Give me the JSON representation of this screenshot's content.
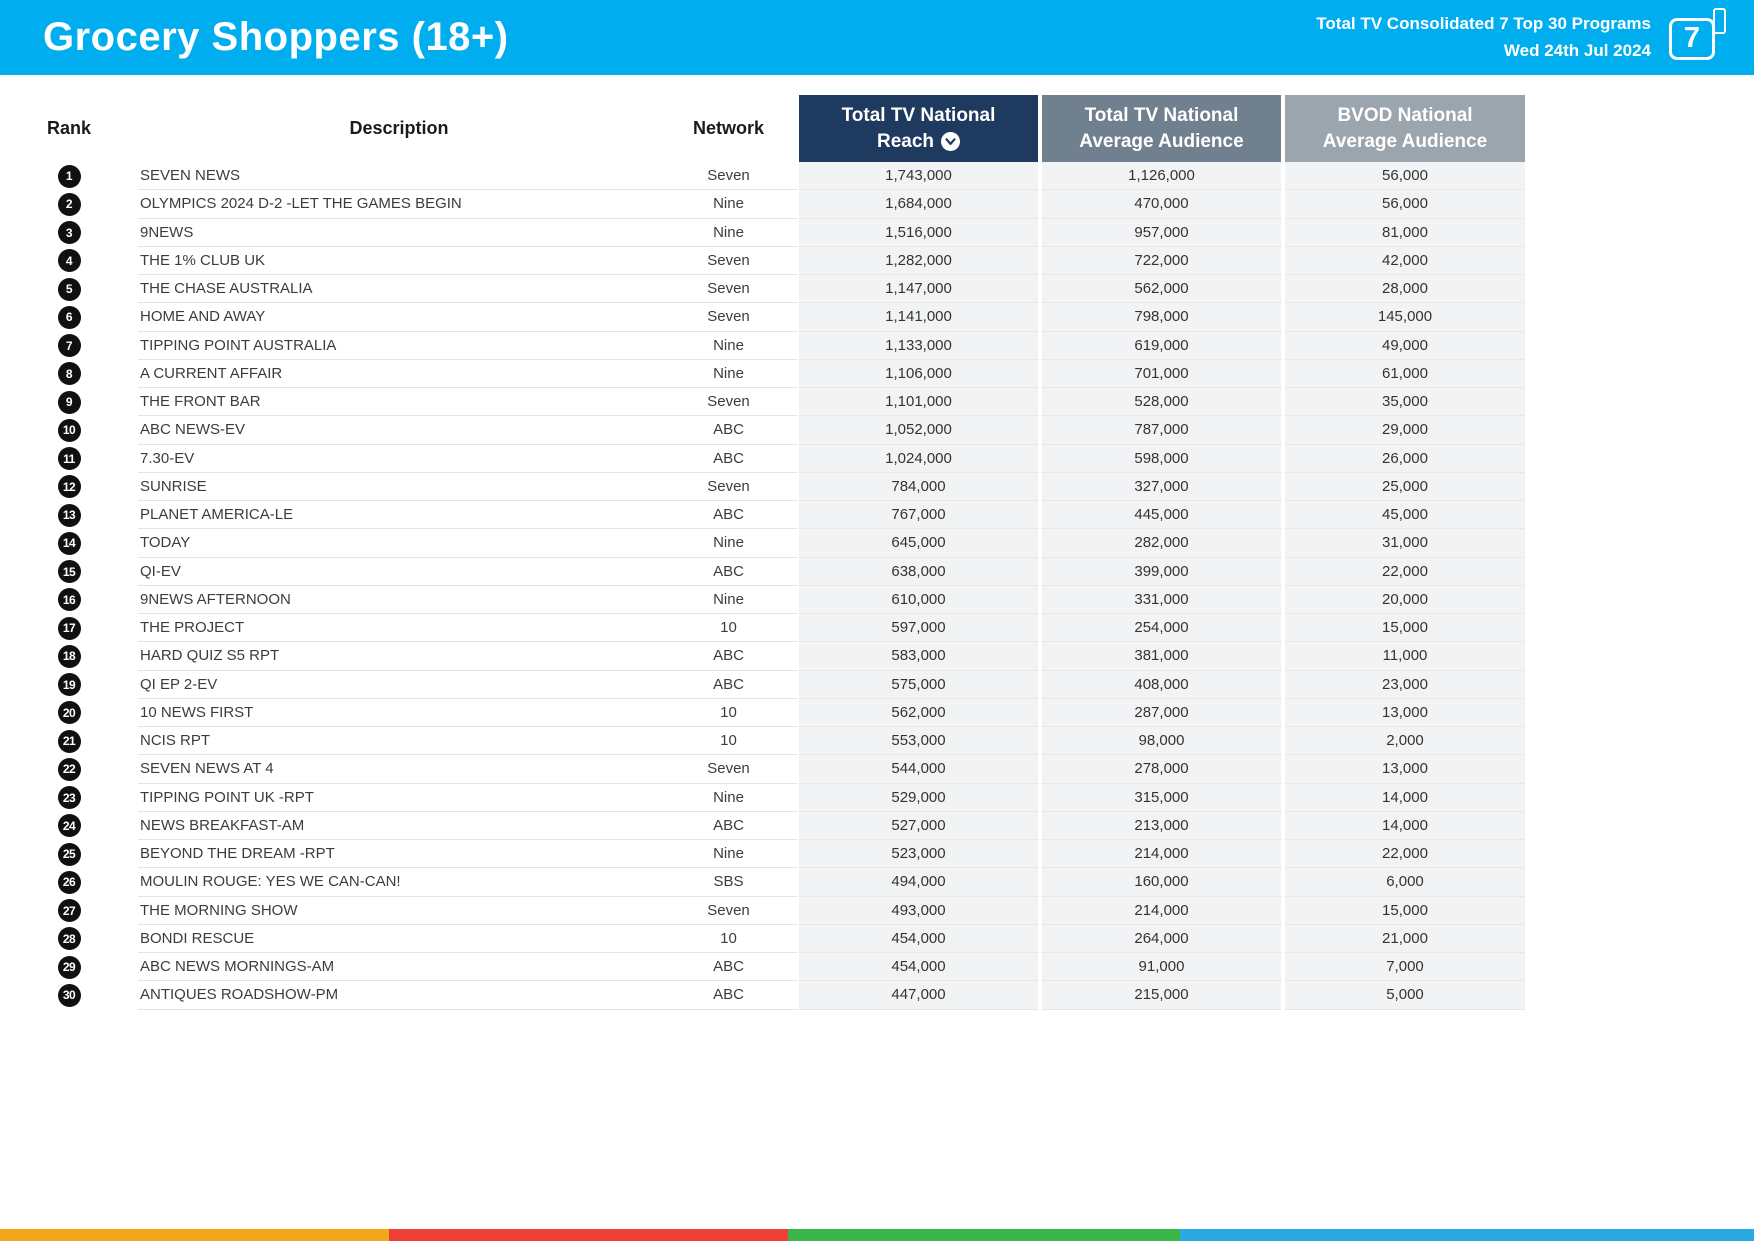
{
  "header": {
    "title": "Grocery Shoppers (18+)",
    "report_label": "Total TV Consolidated 7 Top 30 Programs",
    "report_date": "Wed 24th Jul 2024",
    "logo_text": "7",
    "bg_color": "#00ADEF"
  },
  "table": {
    "columns": {
      "rank": "Rank",
      "description": "Description",
      "network": "Network",
      "reach": "Total TV National Reach",
      "avg": "Total TV National Average Audience",
      "bvod": "BVOD National Average Audience"
    },
    "header_colors": {
      "reach": "#1f3a5f",
      "avg": "#71808f",
      "bvod": "#9ba5ad"
    },
    "sort_column": "reach",
    "sort_direction": "descending",
    "rows": [
      {
        "rank": "1",
        "description": "SEVEN NEWS",
        "network": "Seven",
        "reach": "1,743,000",
        "avg": "1,126,000",
        "bvod": "56,000"
      },
      {
        "rank": "2",
        "description": "OLYMPICS 2024 D-2 -LET THE GAMES BEGIN",
        "network": "Nine",
        "reach": "1,684,000",
        "avg": "470,000",
        "bvod": "56,000"
      },
      {
        "rank": "3",
        "description": "9NEWS",
        "network": "Nine",
        "reach": "1,516,000",
        "avg": "957,000",
        "bvod": "81,000"
      },
      {
        "rank": "4",
        "description": "THE 1% CLUB UK",
        "network": "Seven",
        "reach": "1,282,000",
        "avg": "722,000",
        "bvod": "42,000"
      },
      {
        "rank": "5",
        "description": "THE CHASE AUSTRALIA",
        "network": "Seven",
        "reach": "1,147,000",
        "avg": "562,000",
        "bvod": "28,000"
      },
      {
        "rank": "6",
        "description": "HOME AND AWAY",
        "network": "Seven",
        "reach": "1,141,000",
        "avg": "798,000",
        "bvod": "145,000"
      },
      {
        "rank": "7",
        "description": "TIPPING POINT AUSTRALIA",
        "network": "Nine",
        "reach": "1,133,000",
        "avg": "619,000",
        "bvod": "49,000"
      },
      {
        "rank": "8",
        "description": "A CURRENT AFFAIR",
        "network": "Nine",
        "reach": "1,106,000",
        "avg": "701,000",
        "bvod": "61,000"
      },
      {
        "rank": "9",
        "description": "THE FRONT BAR",
        "network": "Seven",
        "reach": "1,101,000",
        "avg": "528,000",
        "bvod": "35,000"
      },
      {
        "rank": "10",
        "description": "ABC NEWS-EV",
        "network": "ABC",
        "reach": "1,052,000",
        "avg": "787,000",
        "bvod": "29,000"
      },
      {
        "rank": "11",
        "description": "7.30-EV",
        "network": "ABC",
        "reach": "1,024,000",
        "avg": "598,000",
        "bvod": "26,000"
      },
      {
        "rank": "12",
        "description": "SUNRISE",
        "network": "Seven",
        "reach": "784,000",
        "avg": "327,000",
        "bvod": "25,000"
      },
      {
        "rank": "13",
        "description": "PLANET AMERICA-LE",
        "network": "ABC",
        "reach": "767,000",
        "avg": "445,000",
        "bvod": "45,000"
      },
      {
        "rank": "14",
        "description": "TODAY",
        "network": "Nine",
        "reach": "645,000",
        "avg": "282,000",
        "bvod": "31,000"
      },
      {
        "rank": "15",
        "description": "QI-EV",
        "network": "ABC",
        "reach": "638,000",
        "avg": "399,000",
        "bvod": "22,000"
      },
      {
        "rank": "16",
        "description": "9NEWS AFTERNOON",
        "network": "Nine",
        "reach": "610,000",
        "avg": "331,000",
        "bvod": "20,000"
      },
      {
        "rank": "17",
        "description": "THE PROJECT",
        "network": "10",
        "reach": "597,000",
        "avg": "254,000",
        "bvod": "15,000"
      },
      {
        "rank": "18",
        "description": "HARD QUIZ S5 RPT",
        "network": "ABC",
        "reach": "583,000",
        "avg": "381,000",
        "bvod": "11,000"
      },
      {
        "rank": "19",
        "description": "QI EP 2-EV",
        "network": "ABC",
        "reach": "575,000",
        "avg": "408,000",
        "bvod": "23,000"
      },
      {
        "rank": "20",
        "description": "10 NEWS FIRST",
        "network": "10",
        "reach": "562,000",
        "avg": "287,000",
        "bvod": "13,000"
      },
      {
        "rank": "21",
        "description": "NCIS RPT",
        "network": "10",
        "reach": "553,000",
        "avg": "98,000",
        "bvod": "2,000"
      },
      {
        "rank": "22",
        "description": "SEVEN NEWS AT 4",
        "network": "Seven",
        "reach": "544,000",
        "avg": "278,000",
        "bvod": "13,000"
      },
      {
        "rank": "23",
        "description": "TIPPING POINT UK -RPT",
        "network": "Nine",
        "reach": "529,000",
        "avg": "315,000",
        "bvod": "14,000"
      },
      {
        "rank": "24",
        "description": "NEWS BREAKFAST-AM",
        "network": "ABC",
        "reach": "527,000",
        "avg": "213,000",
        "bvod": "14,000"
      },
      {
        "rank": "25",
        "description": "BEYOND THE DREAM -RPT",
        "network": "Nine",
        "reach": "523,000",
        "avg": "214,000",
        "bvod": "22,000"
      },
      {
        "rank": "26",
        "description": "MOULIN ROUGE: YES WE CAN-CAN!",
        "network": "SBS",
        "reach": "494,000",
        "avg": "160,000",
        "bvod": "6,000"
      },
      {
        "rank": "27",
        "description": "THE MORNING SHOW",
        "network": "Seven",
        "reach": "493,000",
        "avg": "214,000",
        "bvod": "15,000"
      },
      {
        "rank": "28",
        "description": "BONDI RESCUE",
        "network": "10",
        "reach": "454,000",
        "avg": "264,000",
        "bvod": "21,000"
      },
      {
        "rank": "29",
        "description": "ABC NEWS MORNINGS-AM",
        "network": "ABC",
        "reach": "454,000",
        "avg": "91,000",
        "bvod": "7,000"
      },
      {
        "rank": "30",
        "description": "ANTIQUES ROADSHOW-PM",
        "network": "ABC",
        "reach": "447,000",
        "avg": "215,000",
        "bvod": "5,000"
      }
    ]
  },
  "footer": {
    "segments": [
      {
        "name": "yellow",
        "color": "#F2A71B",
        "width_pct": 22.2
      },
      {
        "name": "red",
        "color": "#EE4036",
        "width_pct": 22.7
      },
      {
        "name": "green",
        "color": "#3BB54A",
        "width_pct": 22.4
      },
      {
        "name": "blue",
        "color": "#29ABE2",
        "width_pct": 32.7
      }
    ]
  }
}
